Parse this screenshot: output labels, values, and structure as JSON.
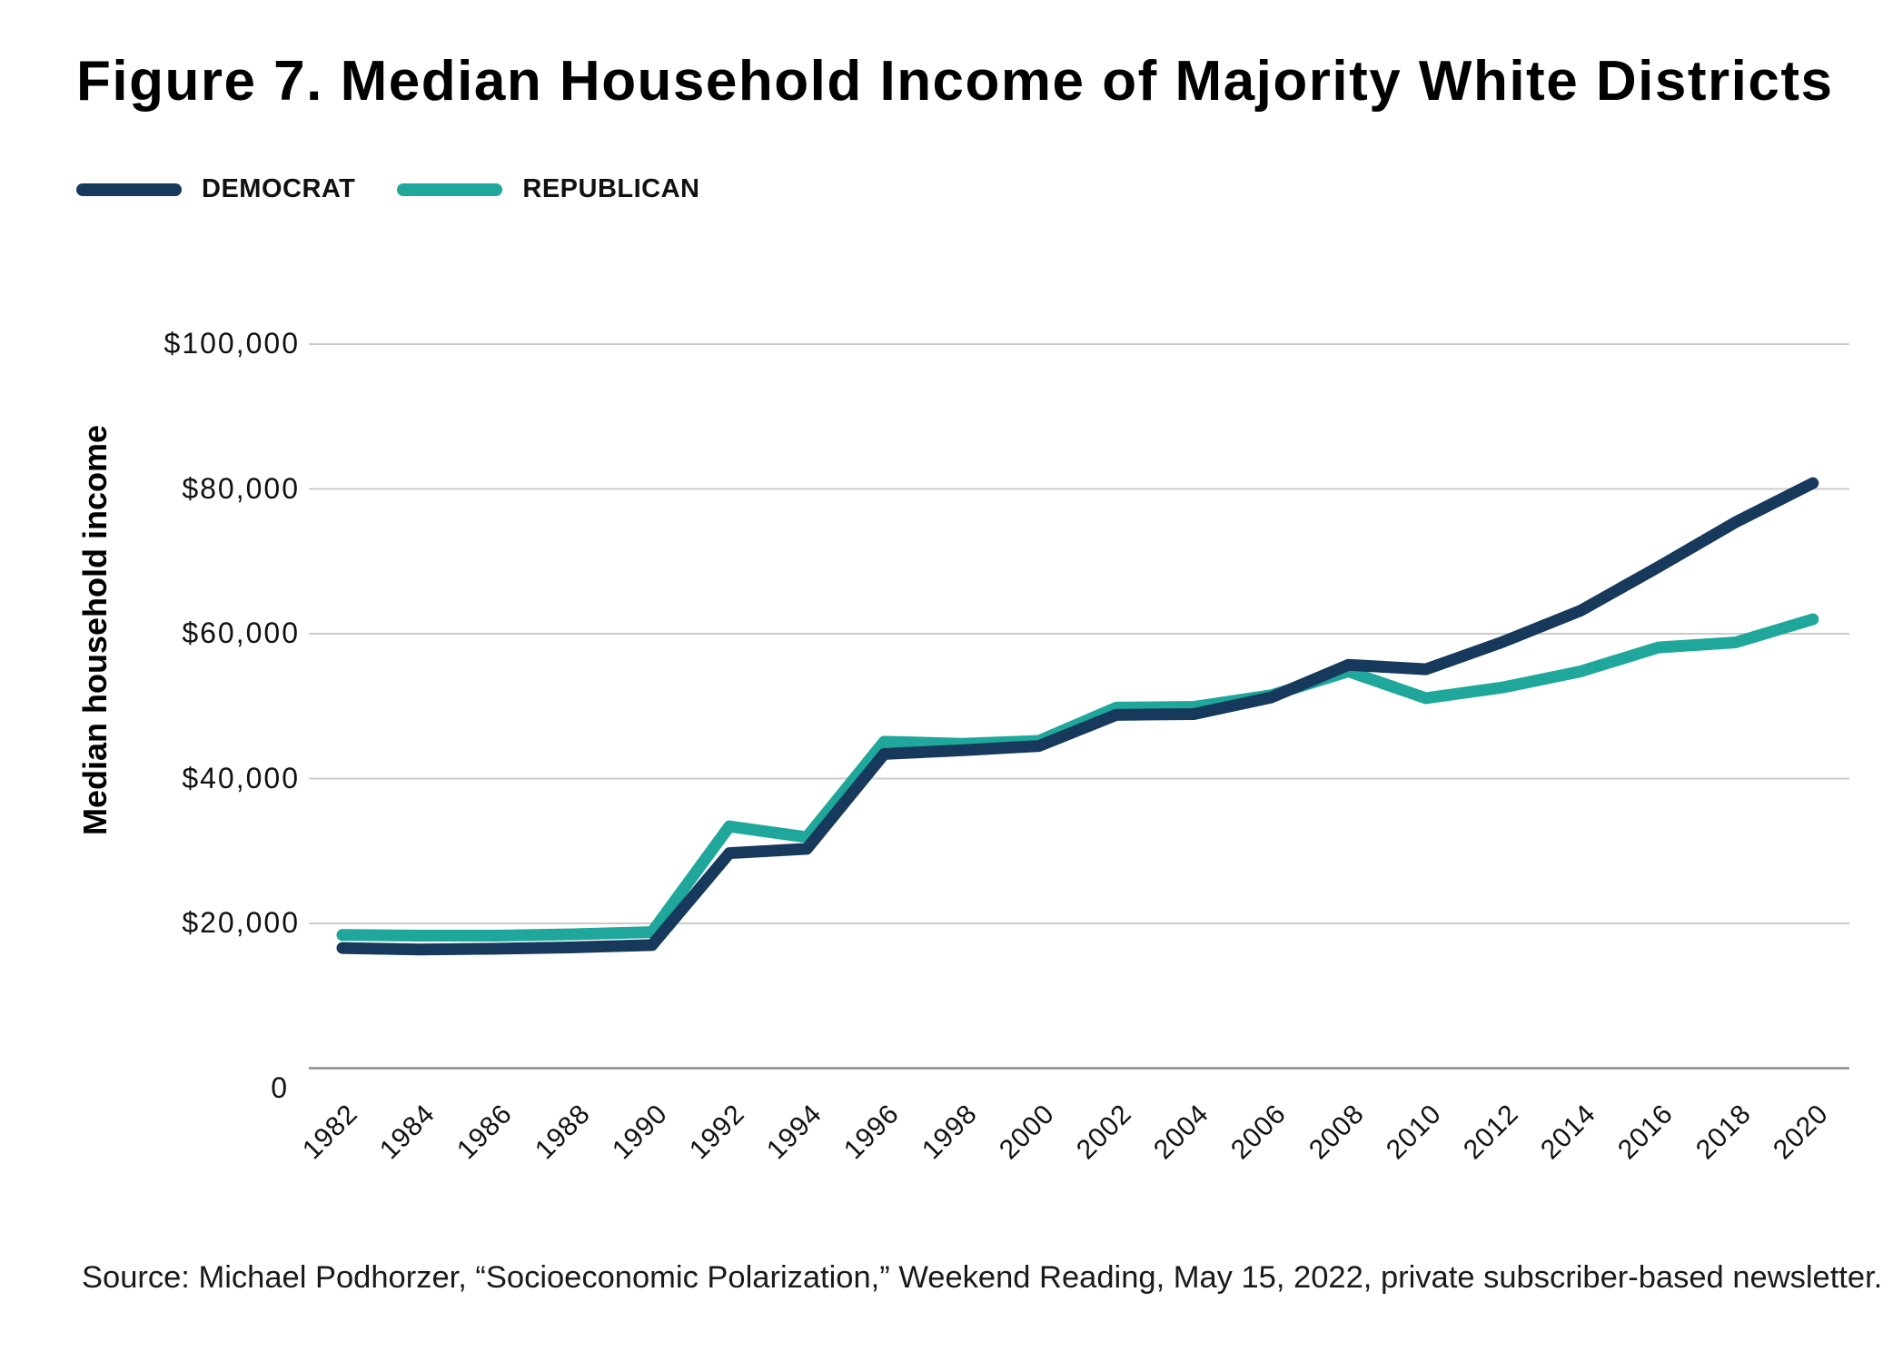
{
  "title": "Figure 7. Median Household Income of Majority White Districts",
  "legend": [
    {
      "label": "DEMOCRAT",
      "color": "#17395B"
    },
    {
      "label": "REPUBLICAN",
      "color": "#1EA79A"
    }
  ],
  "source": "Source: Michael Podhorzer, “Socioeconomic Polarization,” Weekend Reading, May 15, 2022, private subscriber-based newsletter.",
  "chart_data": {
    "type": "line",
    "title": "Figure 7. Median Household Income of Majority White Districts",
    "ylabel": "Median household income",
    "xlabel": "",
    "ylim": [
      0,
      100000
    ],
    "grid": "horizontal",
    "legend_position": "top-left",
    "x": [
      "1982",
      "1984",
      "1986",
      "1988",
      "1990",
      "1992",
      "1994",
      "1996",
      "1998",
      "2000",
      "2002",
      "2004",
      "2006",
      "2008",
      "2010",
      "2012",
      "2014",
      "2016",
      "2018",
      "2020"
    ],
    "y_ticks": [
      {
        "value": 100000,
        "label": "$100,000"
      },
      {
        "value": 80000,
        "label": "$80,000"
      },
      {
        "value": 60000,
        "label": "$60,000"
      },
      {
        "value": 40000,
        "label": "$40,000"
      },
      {
        "value": 20000,
        "label": "$20,000"
      },
      {
        "value": 0,
        "label": "0"
      }
    ],
    "series": [
      {
        "name": "DEMOCRAT",
        "color": "#17395B",
        "values": [
          16600,
          16400,
          16500,
          16700,
          17000,
          29700,
          30300,
          43400,
          43900,
          44500,
          48800,
          48900,
          51200,
          55700,
          55100,
          58900,
          63200,
          69200,
          75400,
          80800
        ]
      },
      {
        "name": "REPUBLICAN",
        "color": "#1EA79A",
        "values": [
          18400,
          18300,
          18300,
          18500,
          18800,
          33400,
          31900,
          45100,
          44800,
          45200,
          49800,
          49900,
          51500,
          54800,
          51100,
          52600,
          54800,
          58100,
          58800,
          62000
        ]
      }
    ]
  }
}
